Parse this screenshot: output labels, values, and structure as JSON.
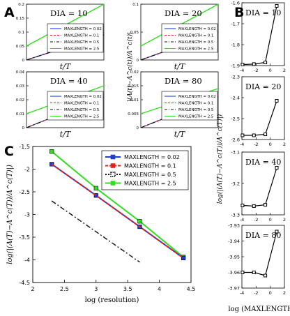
{
  "panel_labels": [
    "A",
    "B",
    "C"
  ],
  "colors": {
    "maxlength_0_02": "#1f3fd6",
    "maxlength_0_1": "#e3231a",
    "maxlength_0_5": "#111111",
    "maxlength_2_5": "#33dd22",
    "axis": "#000000",
    "background": "#ffffff"
  },
  "legend_entries": [
    "MAXLENGTH = 0.02",
    "MAXLENGTH = 0.1",
    "MAXLENGTH = 0.5",
    "MAXLENGTH = 2.5"
  ],
  "chart_data": [
    {
      "panel": "A",
      "type": "line",
      "titles": [
        "DIA = 10",
        "DIA = 20",
        "DIA = 40",
        "DIA = 80"
      ],
      "xlabel": "t/T",
      "ylabel": "|(A(t)−A^c(t))/A^c(t)|",
      "subplots": [
        {
          "title": "DIA = 10",
          "ylim": [
            0,
            0.2
          ],
          "yticks": [
            "0",
            "0.05",
            "0.1",
            "0.15",
            "0.2"
          ],
          "series": [
            {
              "name": "MAXLENGTH = 0.02",
              "start": 0,
              "end": 0.09
            },
            {
              "name": "MAXLENGTH = 0.1",
              "start": 0,
              "end": 0.09
            },
            {
              "name": "MAXLENGTH = 0.5",
              "start": 0,
              "end": 0.09
            },
            {
              "name": "MAXLENGTH = 2.5",
              "start": 0.05,
              "end": 0.2
            }
          ]
        },
        {
          "title": "DIA = 20",
          "ylim": [
            0,
            0.1
          ],
          "yticks": [
            "0",
            "0.05",
            "0.1"
          ],
          "series": [
            {
              "name": "MAXLENGTH = 0.02",
              "start": 0,
              "end": 0.05
            },
            {
              "name": "MAXLENGTH = 0.1",
              "start": 0,
              "end": 0.05
            },
            {
              "name": "MAXLENGTH = 0.5",
              "start": 0,
              "end": 0.05
            },
            {
              "name": "MAXLENGTH = 2.5",
              "start": 0.025,
              "end": 0.1
            }
          ]
        },
        {
          "title": "DIA = 40",
          "ylim": [
            0,
            0.04
          ],
          "yticks": [
            "0",
            "0.01",
            "0.02",
            "0.03",
            "0.04"
          ],
          "series": [
            {
              "name": "MAXLENGTH = 0.02",
              "start": 0,
              "end": 0.022
            },
            {
              "name": "MAXLENGTH = 0.1",
              "start": 0,
              "end": 0.022
            },
            {
              "name": "MAXLENGTH = 0.5",
              "start": 0,
              "end": 0.022
            },
            {
              "name": "MAXLENGTH = 2.5",
              "start": 0.01,
              "end": 0.03
            }
          ]
        },
        {
          "title": "DIA = 80",
          "ylim": [
            0,
            0.02
          ],
          "yticks": [
            "0",
            "0.005",
            "0.01",
            "0.015",
            "0.02"
          ],
          "series": [
            {
              "name": "MAXLENGTH = 0.02",
              "start": 0,
              "end": 0.011
            },
            {
              "name": "MAXLENGTH = 0.1",
              "start": 0,
              "end": 0.011
            },
            {
              "name": "MAXLENGTH = 0.5",
              "start": 0,
              "end": 0.011
            },
            {
              "name": "MAXLENGTH = 2.5",
              "start": 0.005,
              "end": 0.014
            }
          ]
        }
      ]
    },
    {
      "panel": "B",
      "type": "line",
      "xlabel": "log (MAXLENGTH)",
      "ylabel": "log(|(A(T)−A^c(T))/A^c(T)|)",
      "xlim": [
        -4,
        2
      ],
      "xticks": [
        "-4",
        "-2",
        "0",
        "2"
      ],
      "x": [
        -3.912,
        -2.303,
        -0.693,
        0.916
      ],
      "subplots": [
        {
          "title": "DIA = 10",
          "ylim": [
            -1.9,
            -1.6
          ],
          "yticks": [
            "-1.6",
            "-1.7",
            "-1.8",
            "-1.9"
          ],
          "values": [
            -1.895,
            -1.893,
            -1.885,
            -1.615
          ]
        },
        {
          "title": "DIA = 20",
          "ylim": [
            -2.6,
            -2.3
          ],
          "yticks": [
            "-2.3",
            "-2.4",
            "-2.5",
            "-2.6"
          ],
          "values": [
            -2.58,
            -2.58,
            -2.575,
            -2.415
          ]
        },
        {
          "title": "DIA = 40",
          "ylim": [
            -3.3,
            -3.1
          ],
          "yticks": [
            "-3.1",
            "-3.2",
            "-3.3"
          ],
          "values": [
            -3.27,
            -3.272,
            -3.268,
            -3.15
          ]
        },
        {
          "title": "DIA = 80",
          "ylim": [
            -3.97,
            -3.93
          ],
          "yticks": [
            "-3.93",
            "-3.94",
            "-3.95",
            "-3.96",
            "-3.97"
          ],
          "values": [
            -3.96,
            -3.96,
            -3.962,
            -3.934
          ]
        }
      ]
    },
    {
      "panel": "C",
      "type": "line",
      "xlabel": "log (resolution)",
      "ylabel": "log(|(A(T)−A^c(T))/A^c(T)|)",
      "xlim": [
        2,
        4.5
      ],
      "ylim": [
        -4.5,
        -1.5
      ],
      "xticks": [
        "2",
        "2.5",
        "3",
        "3.5",
        "4",
        "4.5"
      ],
      "yticks": [
        "-1.5",
        "-2",
        "-2.5",
        "-3",
        "-3.5",
        "-4",
        "-4.5"
      ],
      "legend_position": "top-right",
      "series": [
        {
          "name": "MAXLENGTH = 0.02",
          "x": [
            2.3,
            3.0,
            3.69,
            4.38
          ],
          "y": [
            -1.89,
            -2.58,
            -3.27,
            -3.96
          ]
        },
        {
          "name": "MAXLENGTH = 0.1",
          "x": [
            2.3,
            3.0,
            3.69,
            4.38
          ],
          "y": [
            -1.89,
            -2.58,
            -3.27,
            -3.96
          ]
        },
        {
          "name": "MAXLENGTH = 0.5",
          "x": [
            2.3,
            3.69
          ],
          "y": [
            -2.7,
            -4.05
          ]
        },
        {
          "name": "MAXLENGTH = 2.5",
          "x": [
            2.3,
            3.0,
            3.69,
            4.38
          ],
          "y": [
            -1.61,
            -2.42,
            -3.15,
            -3.94
          ]
        }
      ]
    }
  ]
}
